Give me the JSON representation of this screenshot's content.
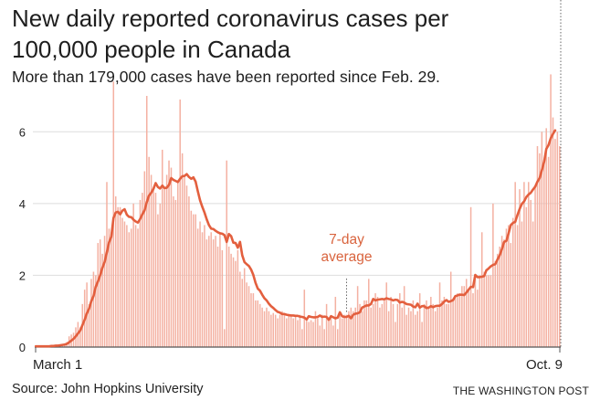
{
  "title": "New daily reported coronavirus cases per 100,000 people in Canada",
  "subtitle": "More than 179,000 cases have been reported since Feb. 29.",
  "source": "Source: John Hopkins University",
  "credit": "THE WASHINGTON POST",
  "colors": {
    "bar": "#f4b1a2",
    "line": "#e35f3e",
    "annotation": "#d9643e",
    "grid": "#dddddd",
    "text": "#222222"
  },
  "chart_data": {
    "type": "bar",
    "x_range": [
      "Feb. 29",
      "Oct. 9"
    ],
    "x_tick_labels": [
      "March 1",
      "Oct. 9"
    ],
    "ylim": [
      0,
      7
    ],
    "y_ticks": [
      0,
      2,
      4,
      6
    ],
    "y_tick_labels": [
      "0",
      "2",
      "4",
      "6"
    ],
    "grid": true,
    "annotation": {
      "text_lines": [
        "7-day",
        "average"
      ],
      "date": "July 17"
    },
    "series": [
      {
        "kind": "bar",
        "note": "new daily reported cases per 100,000 people",
        "values": [
          0.02,
          0.02,
          0.02,
          0.01,
          0.02,
          0.03,
          0.03,
          0.03,
          0.04,
          0.04,
          0.05,
          0.06,
          0.08,
          0.1,
          0.14,
          0.3,
          0.35,
          0.4,
          0.55,
          0.7,
          0.55,
          1.2,
          1.6,
          1.8,
          1.2,
          1.9,
          2.1,
          2.0,
          2.9,
          3.0,
          2.6,
          3.1,
          4.6,
          3.3,
          3.2,
          7.4,
          4.2,
          3.9,
          3.9,
          3.6,
          3.5,
          3.4,
          3.2,
          3.3,
          4.0,
          3.4,
          3.3,
          4.1,
          4.3,
          4.9,
          7.0,
          5.3,
          4.8,
          4.4,
          4.3,
          3.7,
          4.0,
          5.5,
          4.4,
          4.8,
          5.2,
          5.0,
          4.2,
          4.1,
          4.6,
          6.9,
          5.4,
          4.8,
          4.5,
          4.2,
          3.8,
          3.7,
          3.7,
          3.3,
          3.5,
          3.2,
          3.4,
          3.0,
          3.1,
          3.2,
          3.0,
          3.1,
          2.8,
          3.2,
          2.7,
          0.5,
          5.2,
          2.8,
          2.6,
          2.5,
          2.4,
          2.7,
          2.1,
          1.9,
          2.2,
          1.8,
          1.7,
          1.5,
          1.5,
          1.3,
          1.3,
          1.2,
          1.1,
          1.0,
          1.1,
          1.0,
          0.9,
          0.95,
          0.9,
          0.8,
          0.9,
          1.0,
          0.9,
          0.8,
          0.9,
          0.85,
          0.8,
          0.9,
          0.75,
          0.9,
          0.5,
          1.6,
          0.8,
          0.7,
          0.75,
          0.7,
          1.0,
          0.8,
          0.6,
          0.9,
          0.5,
          1.2,
          0.8,
          0.85,
          0.6,
          1.4,
          0.5,
          0.9,
          0.8,
          0.9,
          0.9,
          1.0,
          1.1,
          1.0,
          1.1,
          1.7,
          1.2,
          1.0,
          1.3,
          1.3,
          1.9,
          1.1,
          1.2,
          1.5,
          1.4,
          1.1,
          1.2,
          1.3,
          1.8,
          1.0,
          1.4,
          1.2,
          0.7,
          1.2,
          1.5,
          1.1,
          1.7,
          0.9,
          1.1,
          1.0,
          1.3,
          0.9,
          1.0,
          1.5,
          0.7,
          1.2,
          1.3,
          1.1,
          1.4,
          1.2,
          1.0,
          1.1,
          1.8,
          1.3,
          1.4,
          1.2,
          1.2,
          2.1,
          1.3,
          1.4,
          1.5,
          1.5,
          1.7,
          1.7,
          1.9,
          1.6,
          3.9,
          1.5,
          1.9,
          1.6,
          2.0,
          3.2,
          2.1,
          2.0,
          2.0,
          2.0,
          4.0,
          2.4,
          2.6,
          2.8,
          3.1,
          3.0,
          3.3,
          3.4,
          2.9,
          3.6,
          4.6,
          3.4,
          4.4,
          3.5,
          4.6,
          3.9,
          4.6,
          4.1,
          3.5,
          4.5,
          5.6,
          5.4,
          6.0,
          5.2,
          6.1,
          5.3,
          7.6,
          6.4,
          5.8,
          6.0,
          5.6
        ]
      },
      {
        "kind": "line",
        "name": "7-day average",
        "values": [
          0.02,
          0.02,
          0.02,
          0.02,
          0.02,
          0.02,
          0.02,
          0.03,
          0.03,
          0.04,
          0.04,
          0.05,
          0.06,
          0.07,
          0.09,
          0.13,
          0.18,
          0.23,
          0.3,
          0.38,
          0.46,
          0.61,
          0.76,
          0.94,
          1.07,
          1.28,
          1.42,
          1.68,
          1.83,
          2.0,
          2.21,
          2.37,
          2.64,
          2.92,
          3.07,
          3.6,
          3.75,
          3.77,
          3.7,
          3.8,
          3.84,
          3.69,
          3.63,
          3.62,
          3.55,
          3.5,
          3.47,
          3.57,
          3.7,
          3.81,
          4.04,
          4.22,
          4.3,
          4.41,
          4.57,
          4.46,
          4.42,
          4.5,
          4.43,
          4.44,
          4.52,
          4.71,
          4.66,
          4.63,
          4.6,
          4.69,
          4.76,
          4.77,
          4.82,
          4.74,
          4.69,
          4.73,
          4.61,
          4.34,
          4.09,
          3.91,
          3.75,
          3.56,
          3.4,
          3.3,
          3.29,
          3.24,
          3.2,
          3.17,
          3.16,
          3.12,
          2.93,
          3.15,
          3.09,
          2.91,
          2.9,
          2.77,
          2.93,
          2.56,
          2.37,
          2.31,
          2.26,
          2.16,
          2.01,
          1.79,
          1.63,
          1.57,
          1.46,
          1.36,
          1.3,
          1.21,
          1.14,
          1.09,
          1.03,
          0.98,
          0.96,
          0.92,
          0.92,
          0.9,
          0.89,
          0.88,
          0.88,
          0.87,
          0.87,
          0.85,
          0.84,
          0.82,
          0.77,
          0.86,
          0.84,
          0.83,
          0.83,
          0.84,
          0.88,
          0.84,
          0.85,
          0.84,
          0.76,
          0.86,
          0.83,
          0.8,
          0.82,
          0.97,
          0.86,
          0.84,
          0.84,
          0.87,
          0.8,
          0.9,
          0.93,
          0.94,
          0.97,
          1.1,
          1.13,
          1.16,
          1.16,
          1.2,
          1.34,
          1.3,
          1.32,
          1.33,
          1.34,
          1.33,
          1.36,
          1.34,
          1.33,
          1.3,
          1.32,
          1.31,
          1.24,
          1.26,
          1.24,
          1.2,
          1.19,
          1.18,
          1.13,
          1.11,
          1.21,
          1.1,
          1.14,
          1.14,
          1.09,
          1.1,
          1.14,
          1.11,
          1.14,
          1.15,
          1.15,
          1.2,
          1.27,
          1.31,
          1.26,
          1.28,
          1.31,
          1.42,
          1.44,
          1.46,
          1.46,
          1.45,
          1.52,
          1.6,
          1.68,
          1.67,
          2.01,
          1.95,
          1.95,
          1.96,
          1.98,
          2.14,
          2.19,
          2.25,
          2.29,
          2.31,
          2.44,
          2.56,
          2.73,
          2.93,
          2.96,
          3.17,
          3.4,
          3.46,
          3.49,
          3.68,
          3.85,
          3.99,
          4.06,
          4.18,
          4.25,
          4.3,
          4.39,
          4.47,
          4.61,
          4.71,
          4.93,
          5.16,
          5.52,
          5.63,
          5.82,
          5.94,
          6.04
        ]
      }
    ]
  }
}
